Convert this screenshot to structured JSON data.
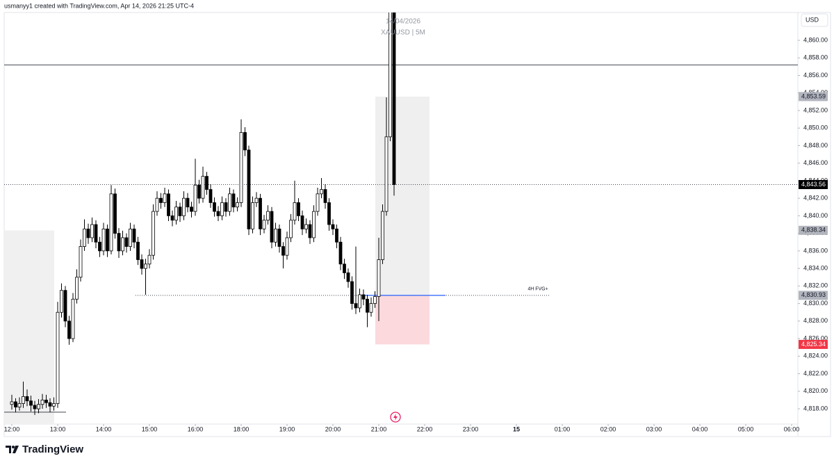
{
  "header": "usmanyy1 created with TradingView.com, Apr 14, 2026 21:25 UTC-4",
  "watermark": [
    "14/04/2026",
    "XAUUSD | 5M"
  ],
  "logo": "TradingView",
  "chart_data": {
    "type": "candlestick",
    "currency": "USD",
    "ylim": [
      4816.26,
      4863.17
    ],
    "yticks": [
      {
        "value": 4818,
        "label": "4,818.00"
      },
      {
        "value": 4820,
        "label": "4,820.00"
      },
      {
        "value": 4822,
        "label": "4,822.00"
      },
      {
        "value": 4824,
        "label": "4,824.00"
      },
      {
        "value": 4826,
        "label": "4,826.00"
      },
      {
        "value": 4828,
        "label": "4,828.00"
      },
      {
        "value": 4830,
        "label": "4,830.00"
      },
      {
        "value": 4832,
        "label": "4,832.00"
      },
      {
        "value": 4834,
        "label": "4,834.00"
      },
      {
        "value": 4836,
        "label": "4,836.00"
      },
      {
        "value": 4838,
        "label": "4,838.00"
      },
      {
        "value": 4840,
        "label": "4,840.00"
      },
      {
        "value": 4842,
        "label": "4,842.00"
      },
      {
        "value": 4844,
        "label": "4,844.00"
      },
      {
        "value": 4846,
        "label": "4,846.00"
      },
      {
        "value": 4848,
        "label": "4,848.00"
      },
      {
        "value": 4850,
        "label": "4,850.00"
      },
      {
        "value": 4852,
        "label": "4,852.00"
      },
      {
        "value": 4854,
        "label": "4,854.00"
      },
      {
        "value": 4856,
        "label": "4,856.00"
      },
      {
        "value": 4858,
        "label": "4,858.00"
      },
      {
        "value": 4860,
        "label": "4,860.00"
      }
    ],
    "xticks": [
      {
        "value": "12:00",
        "label": "12:00"
      },
      {
        "value": "13:00",
        "label": "13:00"
      },
      {
        "value": "14:00",
        "label": "14:00"
      },
      {
        "value": "15:00",
        "label": "15:00"
      },
      {
        "value": "16:00",
        "label": "16:00"
      },
      {
        "value": "18:00",
        "label": "18:00"
      },
      {
        "value": "19:00",
        "label": "19:00"
      },
      {
        "value": "20:00",
        "label": "20:00"
      },
      {
        "value": "21:00",
        "label": "21:00"
      },
      {
        "value": "22:00",
        "label": "22:00"
      },
      {
        "value": "23:00",
        "label": "23:00"
      },
      {
        "value": "00:00",
        "label": "15"
      },
      {
        "value": "01:00",
        "label": "01:00"
      },
      {
        "value": "02:00",
        "label": "02:00"
      },
      {
        "value": "03:00",
        "label": "03:00"
      },
      {
        "value": "04:00",
        "label": "04:00"
      },
      {
        "value": "05:00",
        "label": "05:00"
      },
      {
        "value": "06:00",
        "label": "06:00"
      }
    ],
    "x": [
      "12:00",
      "12:05",
      "12:10",
      "12:15",
      "12:20",
      "12:25",
      "12:30",
      "12:35",
      "12:40",
      "12:45",
      "12:50",
      "12:55",
      "13:00",
      "13:05",
      "13:10",
      "13:15",
      "13:20",
      "13:25",
      "13:30",
      "13:35",
      "13:40",
      "13:45",
      "13:50",
      "13:55",
      "14:00",
      "14:05",
      "14:10",
      "14:15",
      "14:20",
      "14:25",
      "14:30",
      "14:35",
      "14:40",
      "14:45",
      "14:50",
      "14:55",
      "15:00",
      "15:05",
      "15:10",
      "15:15",
      "15:20",
      "15:25",
      "15:30",
      "15:35",
      "15:40",
      "15:45",
      "15:50",
      "15:55",
      "16:00",
      "16:05",
      "16:10",
      "16:15",
      "16:20",
      "16:25",
      "16:30",
      "16:35",
      "16:40",
      "16:45",
      "16:50",
      "16:55",
      "18:00",
      "18:05",
      "18:10",
      "18:15",
      "18:20",
      "18:25",
      "18:30",
      "18:35",
      "18:40",
      "18:45",
      "18:50",
      "18:55",
      "19:00",
      "19:05",
      "19:10",
      "19:15",
      "19:20",
      "19:25",
      "19:30",
      "19:35",
      "19:40",
      "19:45",
      "19:50",
      "19:55",
      "20:00",
      "20:05",
      "20:10",
      "20:15",
      "20:20",
      "20:25",
      "20:30",
      "20:35",
      "20:40",
      "20:45",
      "20:50",
      "20:55",
      "21:00",
      "21:05",
      "21:10",
      "21:15",
      "21:20"
    ],
    "ohlc": [
      [
        4818.5,
        4819.6,
        4817.9,
        4818.8
      ],
      [
        4818.8,
        4819.2,
        4817.6,
        4818.2
      ],
      [
        4818.2,
        4819.3,
        4817.8,
        4818.6
      ],
      [
        4818.6,
        4821.1,
        4818.1,
        4819.4
      ],
      [
        4819.4,
        4820.2,
        4818.3,
        4818.9
      ],
      [
        4818.9,
        4819.5,
        4817.7,
        4818.4
      ],
      [
        4818.4,
        4818.9,
        4817.3,
        4818.0
      ],
      [
        4818.0,
        4819.1,
        4817.5,
        4818.5
      ],
      [
        4818.5,
        4819.7,
        4818.0,
        4819.0
      ],
      [
        4819.0,
        4819.6,
        4818.1,
        4818.7
      ],
      [
        4818.7,
        4819.2,
        4817.6,
        4818.3
      ],
      [
        4818.3,
        4819.3,
        4817.8,
        4818.6
      ],
      [
        4818.6,
        4830.2,
        4818.1,
        4829.0
      ],
      [
        4829.0,
        4832.3,
        4828.4,
        4831.5
      ],
      [
        4831.5,
        4832.0,
        4827.3,
        4828.0
      ],
      [
        4828.0,
        4828.6,
        4825.3,
        4826.0
      ],
      [
        4826.0,
        4831.2,
        4825.6,
        4830.5
      ],
      [
        4830.5,
        4833.9,
        4830.0,
        4833.0
      ],
      [
        4833.0,
        4837.3,
        4832.5,
        4836.5
      ],
      [
        4836.5,
        4839.6,
        4836.0,
        4838.5
      ],
      [
        4838.5,
        4839.1,
        4836.8,
        4837.5
      ],
      [
        4837.5,
        4839.8,
        4837.0,
        4839.0
      ],
      [
        4839.0,
        4839.5,
        4836.3,
        4837.0
      ],
      [
        4837.0,
        4837.6,
        4835.3,
        4836.0
      ],
      [
        4836.0,
        4839.2,
        4835.5,
        4838.5
      ],
      [
        4838.5,
        4839.0,
        4835.3,
        4836.0
      ],
      [
        4836.0,
        4843.5,
        4835.6,
        4842.5
      ],
      [
        4842.5,
        4843.1,
        4837.4,
        4838.0
      ],
      [
        4838.0,
        4838.6,
        4835.2,
        4836.0
      ],
      [
        4836.0,
        4838.3,
        4835.5,
        4837.5
      ],
      [
        4837.5,
        4838.0,
        4835.8,
        4836.5
      ],
      [
        4836.5,
        4839.2,
        4836.0,
        4838.5
      ],
      [
        4838.5,
        4839.0,
        4836.3,
        4837.0
      ],
      [
        4837.0,
        4837.6,
        4834.4,
        4835.0
      ],
      [
        4835.0,
        4835.6,
        4833.3,
        4834.0
      ],
      [
        4834.0,
        4835.1,
        4831.0,
        4834.5
      ],
      [
        4834.5,
        4836.2,
        4834.0,
        4835.5
      ],
      [
        4835.5,
        4841.3,
        4835.0,
        4840.5
      ],
      [
        4840.5,
        4842.8,
        4840.0,
        4842.0
      ],
      [
        4842.0,
        4842.6,
        4840.8,
        4841.5
      ],
      [
        4841.5,
        4843.2,
        4841.0,
        4842.5
      ],
      [
        4842.5,
        4843.0,
        4839.4,
        4840.0
      ],
      [
        4840.0,
        4840.6,
        4838.8,
        4839.5
      ],
      [
        4839.5,
        4841.7,
        4839.0,
        4841.0
      ],
      [
        4841.0,
        4841.5,
        4839.3,
        4840.0
      ],
      [
        4840.0,
        4842.8,
        4839.5,
        4842.0
      ],
      [
        4842.0,
        4842.6,
        4840.4,
        4841.0
      ],
      [
        4841.0,
        4841.6,
        4839.8,
        4840.5
      ],
      [
        4840.5,
        4846.5,
        4840.0,
        4843.5
      ],
      [
        4843.5,
        4844.1,
        4841.4,
        4842.0
      ],
      [
        4842.0,
        4845.6,
        4841.5,
        4844.5
      ],
      [
        4844.5,
        4845.0,
        4842.4,
        4843.0
      ],
      [
        4843.0,
        4843.6,
        4840.9,
        4841.5
      ],
      [
        4841.5,
        4842.1,
        4839.9,
        4840.5
      ],
      [
        4840.5,
        4841.1,
        4839.4,
        4840.0
      ],
      [
        4840.0,
        4842.2,
        4839.5,
        4841.5
      ],
      [
        4841.5,
        4842.0,
        4839.9,
        4840.5
      ],
      [
        4840.5,
        4843.2,
        4840.0,
        4842.5
      ],
      [
        4842.5,
        4843.0,
        4840.4,
        4841.0
      ],
      [
        4841.0,
        4842.1,
        4840.5,
        4841.5
      ],
      [
        4841.5,
        4851.0,
        4841.0,
        4849.5
      ],
      [
        4849.5,
        4850.1,
        4846.8,
        4847.5
      ],
      [
        4847.5,
        4848.0,
        4837.8,
        4838.5
      ],
      [
        4838.5,
        4842.2,
        4838.0,
        4841.5
      ],
      [
        4841.5,
        4842.7,
        4841.0,
        4842.0
      ],
      [
        4842.0,
        4842.5,
        4837.8,
        4838.5
      ],
      [
        4838.5,
        4840.1,
        4838.0,
        4839.5
      ],
      [
        4839.5,
        4841.2,
        4839.0,
        4840.5
      ],
      [
        4840.5,
        4841.0,
        4836.3,
        4837.0
      ],
      [
        4837.0,
        4839.2,
        4836.5,
        4838.5
      ],
      [
        4838.5,
        4839.0,
        4835.8,
        4836.5
      ],
      [
        4836.5,
        4837.0,
        4834.0,
        4835.5
      ],
      [
        4835.5,
        4838.2,
        4835.0,
        4837.5
      ],
      [
        4837.5,
        4840.2,
        4837.0,
        4839.5
      ],
      [
        4839.5,
        4844.0,
        4839.0,
        4841.5
      ],
      [
        4841.5,
        4842.0,
        4839.4,
        4840.0
      ],
      [
        4840.0,
        4840.6,
        4837.8,
        4838.5
      ],
      [
        4838.5,
        4839.7,
        4838.0,
        4839.0
      ],
      [
        4839.0,
        4839.5,
        4836.8,
        4837.5
      ],
      [
        4837.5,
        4841.2,
        4837.0,
        4840.5
      ],
      [
        4840.5,
        4843.2,
        4840.0,
        4842.5
      ],
      [
        4842.5,
        4844.3,
        4842.0,
        4843.0
      ],
      [
        4843.0,
        4843.6,
        4840.8,
        4841.5
      ],
      [
        4841.5,
        4842.0,
        4838.3,
        4839.0
      ],
      [
        4839.0,
        4839.6,
        4837.8,
        4838.5
      ],
      [
        4838.5,
        4839.0,
        4836.3,
        4837.0
      ],
      [
        4837.0,
        4837.6,
        4833.8,
        4834.5
      ],
      [
        4834.5,
        4835.1,
        4832.8,
        4833.5
      ],
      [
        4833.5,
        4834.0,
        4831.8,
        4832.5
      ],
      [
        4832.5,
        4833.1,
        4829.3,
        4830.0
      ],
      [
        4830.0,
        4836.5,
        4828.8,
        4829.5
      ],
      [
        4829.5,
        4831.7,
        4829.0,
        4831.0
      ],
      [
        4831.0,
        4831.6,
        4829.8,
        4830.5
      ],
      [
        4830.5,
        4831.0,
        4827.3,
        4829.0
      ],
      [
        4829.0,
        4830.7,
        4828.5,
        4830.0
      ],
      [
        4830.0,
        4831.4,
        4829.5,
        4830.8
      ],
      [
        4830.8,
        4837.5,
        4828.0,
        4835.0
      ],
      [
        4835.0,
        4841.3,
        4834.5,
        4840.5
      ],
      [
        4840.5,
        4853.5,
        4840.0,
        4849.0
      ],
      [
        4849.0,
        4866.0,
        4848.5,
        4864.0
      ],
      [
        4864.0,
        4866.0,
        4842.3,
        4843.56
      ]
    ],
    "up_color": "#ffffff",
    "down_color": "#000000",
    "horizontal_line": 4857.2,
    "fvg_label": "4H FVG+",
    "price_labels": [
      {
        "value": 4853.59,
        "label": "4,853.59",
        "color": "#b2b5be",
        "text_color": "#131722"
      },
      {
        "value": 4843.56,
        "label": "4,843.56",
        "color": "#000000",
        "text_color": "#ffffff"
      },
      {
        "value": 4838.34,
        "label": "4,838.34",
        "color": "#b2b5be",
        "text_color": "#131722"
      },
      {
        "value": 4830.93,
        "label": "4,830.93",
        "color": "#b2b5be",
        "text_color": "#131722"
      },
      {
        "value": 4825.34,
        "label": "4,825.34",
        "color": "#f23645",
        "text_color": "#ffffff"
      }
    ]
  }
}
